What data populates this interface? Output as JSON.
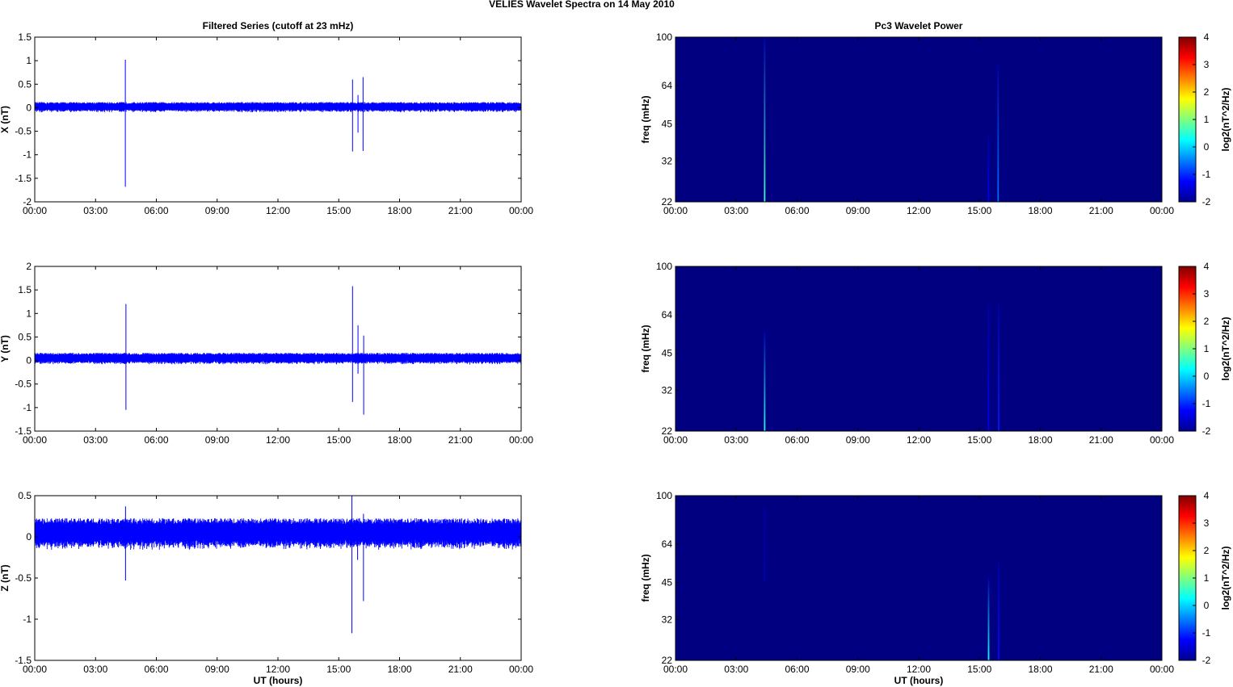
{
  "figure": {
    "title": "VELIES Wavelet Spectra on 14 May      2010",
    "left_title": "Filtered Series (cutoff at 23 mHz)",
    "right_title": "Pc3 Wavelet Power",
    "xlabel": "UT (hours)"
  },
  "time_ticks": [
    "00:00",
    "03:00",
    "06:00",
    "09:00",
    "12:00",
    "15:00",
    "18:00",
    "21:00",
    "00:00"
  ],
  "colors": {
    "trace": "#0000ff",
    "spectrogram_bg": "#00008f",
    "axes": "#000000"
  },
  "chart_data": [
    {
      "type": "line",
      "name_tag": "series-x",
      "ylabel": "X (nT)",
      "ylim": [
        -2,
        1.5
      ],
      "yticks": [
        -2,
        -1.5,
        -1,
        -0.5,
        0,
        0.5,
        1,
        1.5
      ],
      "ytick_labels": [
        "-2",
        "-1.5",
        "-1",
        "-0.5",
        "0",
        "0.5",
        "1",
        "1.5"
      ],
      "xlim_hours": [
        0,
        24
      ],
      "baseline": 0.02,
      "noise_amplitude": 0.08,
      "spikes": [
        {
          "t_hours": 4.47,
          "max": 1.02,
          "min": -1.68
        },
        {
          "t_hours": 15.68,
          "max": 0.6,
          "min": -0.93
        },
        {
          "t_hours": 15.95,
          "max": 0.27,
          "min": -0.53
        },
        {
          "t_hours": 16.2,
          "max": 0.65,
          "min": -0.92
        }
      ]
    },
    {
      "type": "line",
      "name_tag": "series-y",
      "ylabel": "Y (nT)",
      "ylim": [
        -1.5,
        2
      ],
      "yticks": [
        -1.5,
        -1,
        -0.5,
        0,
        0.5,
        1,
        1.5,
        2
      ],
      "ytick_labels": [
        "-1.5",
        "-1",
        "-0.5",
        "0",
        "0.5",
        "1",
        "1.5",
        "2"
      ],
      "xlim_hours": [
        0,
        24
      ],
      "baseline": 0.05,
      "noise_amplitude": 0.09,
      "spikes": [
        {
          "t_hours": 4.5,
          "max": 1.2,
          "min": -1.05
        },
        {
          "t_hours": 15.68,
          "max": 1.58,
          "min": -0.88
        },
        {
          "t_hours": 15.95,
          "max": 0.75,
          "min": -0.28
        },
        {
          "t_hours": 16.23,
          "max": 0.53,
          "min": -1.15
        }
      ]
    },
    {
      "type": "line",
      "name_tag": "series-z",
      "ylabel": "Z (nT)",
      "ylim": [
        -1.5,
        0.5
      ],
      "yticks": [
        -1.5,
        -1,
        -0.5,
        0,
        0.5
      ],
      "ytick_labels": [
        "-1.5",
        "-1",
        "-0.5",
        "0",
        "0.5"
      ],
      "xlim_hours": [
        0,
        24
      ],
      "baseline": 0.05,
      "noise_amplitude": 0.14,
      "spikes": [
        {
          "t_hours": 4.48,
          "max": 0.37,
          "min": -0.53
        },
        {
          "t_hours": 15.65,
          "max": 0.5,
          "min": -1.17
        },
        {
          "t_hours": 15.93,
          "max": 0.2,
          "min": -0.28
        },
        {
          "t_hours": 16.22,
          "max": 0.28,
          "min": -0.78
        }
      ]
    },
    {
      "type": "heatmap",
      "name_tag": "spectrogram-x",
      "ylabel": "freq (mHz)",
      "yscale": "log",
      "ylim": [
        22,
        100
      ],
      "yticks": [
        22,
        32,
        45,
        64,
        100
      ],
      "ytick_labels": [
        "22",
        "32",
        "45",
        "64",
        "100"
      ],
      "xlim_hours": [
        0,
        24
      ],
      "colorbar_label": "log2(nT^2/Hz)",
      "colorbar_ticks": [
        "4",
        "3",
        "2",
        "1",
        "0",
        "-1",
        "-2"
      ],
      "clim": [
        -2,
        4
      ],
      "background_value": -2,
      "streaks": [
        {
          "t_hours": 4.4,
          "f_top": 100,
          "f_bottom": 22,
          "value": 0.6
        },
        {
          "t_hours": 15.45,
          "f_top": 40,
          "f_bottom": 22,
          "value": -1.3
        },
        {
          "t_hours": 15.92,
          "f_top": 78,
          "f_bottom": 22,
          "value": -0.6
        }
      ]
    },
    {
      "type": "heatmap",
      "name_tag": "spectrogram-y",
      "ylabel": "freq (mHz)",
      "yscale": "log",
      "ylim": [
        22,
        100
      ],
      "yticks": [
        22,
        32,
        45,
        64,
        100
      ],
      "ytick_labels": [
        "22",
        "32",
        "45",
        "64",
        "100"
      ],
      "xlim_hours": [
        0,
        24
      ],
      "colorbar_label": "log2(nT^2/Hz)",
      "colorbar_ticks": [
        "4",
        "3",
        "2",
        "1",
        "0",
        "-1",
        "-2"
      ],
      "clim": [
        -2,
        4
      ],
      "background_value": -2,
      "streaks": [
        {
          "t_hours": 4.4,
          "f_top": 55,
          "f_bottom": 22,
          "value": 0.4
        },
        {
          "t_hours": 15.45,
          "f_top": 70,
          "f_bottom": 22,
          "value": -1.3
        },
        {
          "t_hours": 15.95,
          "f_top": 72,
          "f_bottom": 22,
          "value": -1.1
        }
      ]
    },
    {
      "type": "heatmap",
      "name_tag": "spectrogram-z",
      "ylabel": "freq (mHz)",
      "yscale": "log",
      "ylim": [
        22,
        100
      ],
      "yticks": [
        22,
        32,
        45,
        64,
        100
      ],
      "ytick_labels": [
        "22",
        "32",
        "45",
        "64",
        "100"
      ],
      "xlim_hours": [
        0,
        24
      ],
      "colorbar_label": "log2(nT^2/Hz)",
      "colorbar_ticks": [
        "4",
        "3",
        "2",
        "1",
        "0",
        "-1",
        "-2"
      ],
      "clim": [
        -2,
        4
      ],
      "background_value": -2,
      "streaks": [
        {
          "t_hours": 4.4,
          "f_top": 90,
          "f_bottom": 45,
          "value": -1.7
        },
        {
          "t_hours": 15.45,
          "f_top": 47,
          "f_bottom": 22,
          "value": 0.3
        },
        {
          "t_hours": 15.95,
          "f_top": 55,
          "f_bottom": 22,
          "value": -1.2
        }
      ]
    }
  ]
}
